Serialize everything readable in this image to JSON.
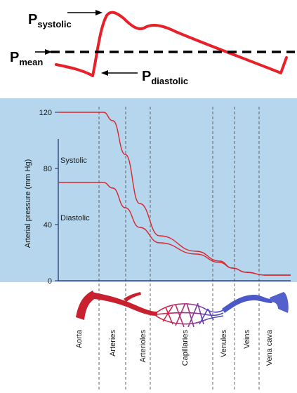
{
  "top_waveform": {
    "labels": {
      "systolic_main": "P",
      "systolic_sub": "systolic",
      "mean_main": "P",
      "mean_sub": "mean",
      "diastolic_main": "P",
      "diastolic_sub": "diastolic"
    },
    "colors": {
      "wave": "#e8202a",
      "dash": "#000000",
      "arrow": "#000000"
    }
  },
  "pressure_chart": {
    "colors": {
      "panel": "#b6d6ee",
      "curve": "#d9262e",
      "axis": "#1a2d6e",
      "divider": "#555555"
    },
    "chart_data": {
      "type": "line",
      "ylabel": "Arterial pressure (mm Hg)",
      "xlabel": "",
      "ylim": [
        0,
        130
      ],
      "y_ticks": [
        "120",
        "80",
        "40",
        "0"
      ],
      "y_tick_values": [
        120,
        80,
        40,
        0
      ],
      "x_categories": [
        "Aorta",
        "Arteries",
        "Arterioles",
        "Capillaries",
        "Venules",
        "Veins",
        "Vena cava"
      ],
      "series": [
        {
          "name": "Systolic",
          "points": [
            [
              0,
              120
            ],
            [
              0.5,
              120
            ],
            [
              1.0,
              120
            ],
            [
              1.3,
              114
            ],
            [
              1.7,
              90
            ],
            [
              2.2,
              55
            ],
            [
              2.7,
              32
            ],
            [
              3.2,
              21
            ],
            [
              3.7,
              14
            ],
            [
              4.2,
              9
            ],
            [
              4.7,
              6
            ],
            [
              5.3,
              4
            ],
            [
              6.0,
              4
            ]
          ]
        },
        {
          "name": "Diastolic",
          "points": [
            [
              0,
              70
            ],
            [
              0.5,
              70
            ],
            [
              1.0,
              70
            ],
            [
              1.3,
              66
            ],
            [
              1.7,
              52
            ],
            [
              2.2,
              38
            ],
            [
              2.7,
              27
            ],
            [
              3.2,
              19
            ],
            [
              3.7,
              13
            ],
            [
              4.2,
              9
            ],
            [
              4.7,
              6
            ],
            [
              5.3,
              4
            ],
            [
              6.0,
              4
            ]
          ]
        }
      ],
      "grid": false
    }
  }
}
